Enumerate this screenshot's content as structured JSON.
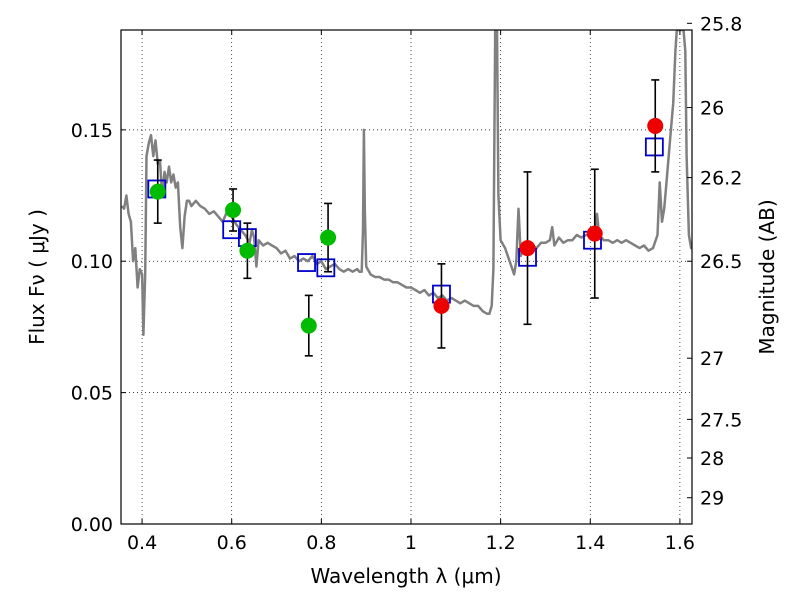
{
  "chart_data": {
    "type": "scatter",
    "title": "",
    "xlabel": "Wavelength  λ (μm)",
    "ylabel": "Flux  Fν  ( μJy )",
    "ylabel_right": "Magnitude (AB)",
    "xlim": [
      0.353,
      1.627
    ],
    "ylim": [
      0.0,
      0.188
    ],
    "grid": true,
    "x_ticks": [
      {
        "value": 0.4,
        "label": "0.4"
      },
      {
        "value": 0.6,
        "label": "0.6"
      },
      {
        "value": 0.8,
        "label": "0.8"
      },
      {
        "value": 1.0,
        "label": "1"
      },
      {
        "value": 1.2,
        "label": "1.2"
      },
      {
        "value": 1.4,
        "label": "1.4"
      },
      {
        "value": 1.6,
        "label": "1.6"
      }
    ],
    "y_ticks": [
      {
        "value": 0.0,
        "label": "0.00"
      },
      {
        "value": 0.05,
        "label": "0.05"
      },
      {
        "value": 0.1,
        "label": "0.10"
      },
      {
        "value": 0.15,
        "label": "0.15"
      }
    ],
    "right_ticks": [
      {
        "value": 25.8,
        "label": "25.8"
      },
      {
        "value": 26.0,
        "label": "26"
      },
      {
        "value": 26.2,
        "label": "26.2"
      },
      {
        "value": 26.5,
        "label": "26.5"
      },
      {
        "value": 27.0,
        "label": "27"
      },
      {
        "value": 27.5,
        "label": "27.5"
      },
      {
        "value": 28.0,
        "label": "28"
      },
      {
        "value": 29.0,
        "label": "29"
      }
    ],
    "colors": {
      "template": "#808080",
      "optical": "#00bb00",
      "nir": "#ee0000",
      "model": "#0000cc",
      "errorbar": "#000000"
    },
    "series": [
      {
        "kind": "line",
        "points": [
          [
            0.355,
            0.121
          ],
          [
            0.36,
            0.12
          ],
          [
            0.365,
            0.125
          ],
          [
            0.37,
            0.118
          ],
          [
            0.375,
            0.115
          ],
          [
            0.38,
            0.1
          ],
          [
            0.385,
            0.105
          ],
          [
            0.39,
            0.09
          ],
          [
            0.395,
            0.097
          ],
          [
            0.4,
            0.095
          ],
          [
            0.403,
            0.072
          ],
          [
            0.407,
            0.095
          ],
          [
            0.41,
            0.14
          ],
          [
            0.415,
            0.145
          ],
          [
            0.42,
            0.148
          ],
          [
            0.425,
            0.14
          ],
          [
            0.43,
            0.146
          ],
          [
            0.435,
            0.137
          ],
          [
            0.44,
            0.138
          ],
          [
            0.445,
            0.125
          ],
          [
            0.45,
            0.134
          ],
          [
            0.455,
            0.13
          ],
          [
            0.46,
            0.136
          ],
          [
            0.465,
            0.13
          ],
          [
            0.47,
            0.133
          ],
          [
            0.475,
            0.128
          ],
          [
            0.48,
            0.13
          ],
          [
            0.485,
            0.113
          ],
          [
            0.49,
            0.105
          ],
          [
            0.495,
            0.117
          ],
          [
            0.5,
            0.123
          ],
          [
            0.505,
            0.123
          ],
          [
            0.51,
            0.121
          ],
          [
            0.52,
            0.123
          ],
          [
            0.53,
            0.121
          ],
          [
            0.54,
            0.12
          ],
          [
            0.55,
            0.118
          ],
          [
            0.56,
            0.119
          ],
          [
            0.57,
            0.117
          ],
          [
            0.58,
            0.115
          ],
          [
            0.59,
            0.119
          ],
          [
            0.6,
            0.117
          ],
          [
            0.61,
            0.114
          ],
          [
            0.62,
            0.112
          ],
          [
            0.63,
            0.11
          ],
          [
            0.64,
            0.107
          ],
          [
            0.645,
            0.112
          ],
          [
            0.65,
            0.109
          ],
          [
            0.655,
            0.098
          ],
          [
            0.66,
            0.108
          ],
          [
            0.67,
            0.106
          ],
          [
            0.68,
            0.107
          ],
          [
            0.69,
            0.106
          ],
          [
            0.7,
            0.105
          ],
          [
            0.71,
            0.103
          ],
          [
            0.72,
            0.104
          ],
          [
            0.73,
            0.101
          ],
          [
            0.74,
            0.102
          ],
          [
            0.75,
            0.1
          ],
          [
            0.76,
            0.101
          ],
          [
            0.77,
            0.1
          ],
          [
            0.78,
            0.102
          ],
          [
            0.79,
            0.099
          ],
          [
            0.8,
            0.1
          ],
          [
            0.81,
            0.097
          ],
          [
            0.82,
            0.098
          ],
          [
            0.83,
            0.099
          ],
          [
            0.84,
            0.097
          ],
          [
            0.85,
            0.096
          ],
          [
            0.86,
            0.097
          ],
          [
            0.87,
            0.096
          ],
          [
            0.88,
            0.097
          ],
          [
            0.885,
            0.096
          ],
          [
            0.89,
            0.096
          ],
          [
            0.893,
            0.112
          ],
          [
            0.895,
            0.15
          ],
          [
            0.897,
            0.12
          ],
          [
            0.9,
            0.098
          ],
          [
            0.91,
            0.095
          ],
          [
            0.92,
            0.094
          ],
          [
            0.93,
            0.094
          ],
          [
            0.94,
            0.093
          ],
          [
            0.95,
            0.093
          ],
          [
            0.96,
            0.092
          ],
          [
            0.97,
            0.092
          ],
          [
            0.98,
            0.091
          ],
          [
            0.99,
            0.09
          ],
          [
            1.0,
            0.09
          ],
          [
            1.01,
            0.089
          ],
          [
            1.02,
            0.088
          ],
          [
            1.03,
            0.089
          ],
          [
            1.04,
            0.087
          ],
          [
            1.05,
            0.088
          ],
          [
            1.06,
            0.086
          ],
          [
            1.07,
            0.087
          ],
          [
            1.08,
            0.085
          ],
          [
            1.09,
            0.086
          ],
          [
            1.1,
            0.085
          ],
          [
            1.11,
            0.084
          ],
          [
            1.12,
            0.085
          ],
          [
            1.13,
            0.084
          ],
          [
            1.14,
            0.083
          ],
          [
            1.15,
            0.083
          ],
          [
            1.16,
            0.081
          ],
          [
            1.17,
            0.08
          ],
          [
            1.175,
            0.08
          ],
          [
            1.18,
            0.083
          ],
          [
            1.184,
            0.097
          ],
          [
            1.188,
            0.188
          ],
          [
            1.19,
            0.188
          ],
          [
            1.192,
            0.19
          ],
          [
            1.195,
            0.125
          ],
          [
            1.2,
            0.108
          ],
          [
            1.21,
            0.105
          ],
          [
            1.22,
            0.1
          ],
          [
            1.23,
            0.095
          ],
          [
            1.235,
            0.1
          ],
          [
            1.24,
            0.12
          ],
          [
            1.245,
            0.102
          ],
          [
            1.25,
            0.105
          ],
          [
            1.26,
            0.104
          ],
          [
            1.27,
            0.106
          ],
          [
            1.28,
            0.105
          ],
          [
            1.29,
            0.107
          ],
          [
            1.3,
            0.107
          ],
          [
            1.31,
            0.108
          ],
          [
            1.315,
            0.113
          ],
          [
            1.32,
            0.106
          ],
          [
            1.33,
            0.109
          ],
          [
            1.34,
            0.107
          ],
          [
            1.35,
            0.108
          ],
          [
            1.36,
            0.108
          ],
          [
            1.37,
            0.11
          ],
          [
            1.38,
            0.109
          ],
          [
            1.39,
            0.11
          ],
          [
            1.4,
            0.11
          ],
          [
            1.41,
            0.111
          ],
          [
            1.415,
            0.118
          ],
          [
            1.42,
            0.11
          ],
          [
            1.43,
            0.108
          ],
          [
            1.44,
            0.108
          ],
          [
            1.45,
            0.107
          ],
          [
            1.46,
            0.108
          ],
          [
            1.47,
            0.107
          ],
          [
            1.48,
            0.108
          ],
          [
            1.49,
            0.107
          ],
          [
            1.5,
            0.106
          ],
          [
            1.51,
            0.105
          ],
          [
            1.52,
            0.106
          ],
          [
            1.53,
            0.104
          ],
          [
            1.54,
            0.105
          ],
          [
            1.55,
            0.11
          ],
          [
            1.555,
            0.13
          ],
          [
            1.56,
            0.115
          ],
          [
            1.565,
            0.12
          ],
          [
            1.57,
            0.13
          ],
          [
            1.575,
            0.14
          ],
          [
            1.58,
            0.15
          ],
          [
            1.585,
            0.16
          ],
          [
            1.59,
            0.18
          ],
          [
            1.593,
            0.188
          ],
          [
            1.608,
            0.188
          ],
          [
            1.612,
            0.18
          ],
          [
            1.615,
            0.14
          ],
          [
            1.62,
            0.11
          ],
          [
            1.625,
            0.105
          ],
          [
            1.627,
            0.106
          ]
        ]
      },
      {
        "kind": "points",
        "group": "optical",
        "points": [
          {
            "x": 0.435,
            "y": 0.1265,
            "err": 0.012
          },
          {
            "x": 0.603,
            "y": 0.1195,
            "err": 0.008
          },
          {
            "x": 0.635,
            "y": 0.104,
            "err": 0.0105
          },
          {
            "x": 0.772,
            "y": 0.0755,
            "err": 0.0115
          },
          {
            "x": 0.815,
            "y": 0.109,
            "err": 0.013
          }
        ]
      },
      {
        "kind": "points",
        "group": "nir",
        "points": [
          {
            "x": 1.068,
            "y": 0.083,
            "err": 0.016
          },
          {
            "x": 1.26,
            "y": 0.105,
            "err": 0.029
          },
          {
            "x": 1.41,
            "y": 0.1105,
            "err": 0.0245
          },
          {
            "x": 1.545,
            "y": 0.1515,
            "err": 0.0175
          }
        ]
      },
      {
        "kind": "model",
        "points": [
          {
            "x": 0.433,
            "y": 0.1275
          },
          {
            "x": 0.6,
            "y": 0.112
          },
          {
            "x": 0.635,
            "y": 0.109
          },
          {
            "x": 0.767,
            "y": 0.0995
          },
          {
            "x": 0.81,
            "y": 0.0975
          },
          {
            "x": 1.068,
            "y": 0.0875
          },
          {
            "x": 1.26,
            "y": 0.1015
          },
          {
            "x": 1.405,
            "y": 0.108
          },
          {
            "x": 1.543,
            "y": 0.1435
          }
        ]
      }
    ]
  }
}
